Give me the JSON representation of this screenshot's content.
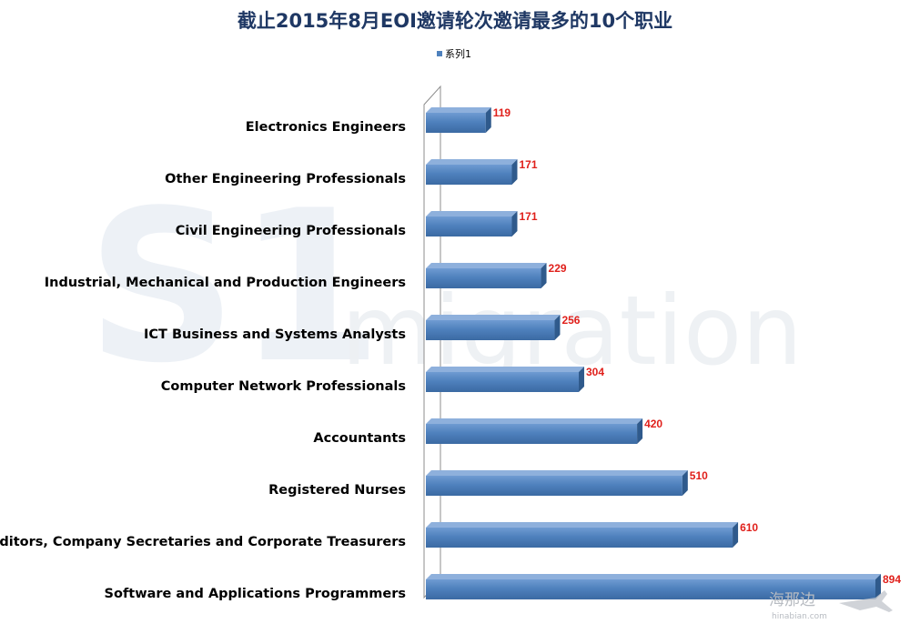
{
  "chart_data": {
    "type": "bar",
    "orientation": "horizontal",
    "title": "截止2015年8月EOI邀请轮次邀请最多的10个职业",
    "legend": {
      "position": "top",
      "entries": [
        "系列1"
      ]
    },
    "categories": [
      "Electronics Engineers",
      "Other Engineering Professionals",
      "Civil Engineering Professionals",
      "Industrial, Mechanical and Production Engineers",
      "ICT Business and Systems Analysts",
      "Computer Network Professionals",
      "Accountants",
      "Registered Nurses",
      "Auditors, Company Secretaries and Corporate Treasurers",
      "Software and Applications Programmers"
    ],
    "series": [
      {
        "name": "系列1",
        "values": [
          119,
          171,
          171,
          229,
          256,
          304,
          420,
          510,
          610,
          894
        ],
        "color": "#4f81bd"
      }
    ],
    "data_labels": [
      "119",
      "171",
      "171",
      "229",
      "256",
      "304",
      "420",
      "510",
      "610",
      "894"
    ],
    "data_label_color": "#e0201b",
    "xlim": [
      0,
      894
    ],
    "grid": false,
    "style": "3d"
  },
  "watermark": {
    "logo_text": "S1",
    "text": "migration",
    "corner_text": "海那边",
    "corner_subtext": "hinabian.com"
  }
}
